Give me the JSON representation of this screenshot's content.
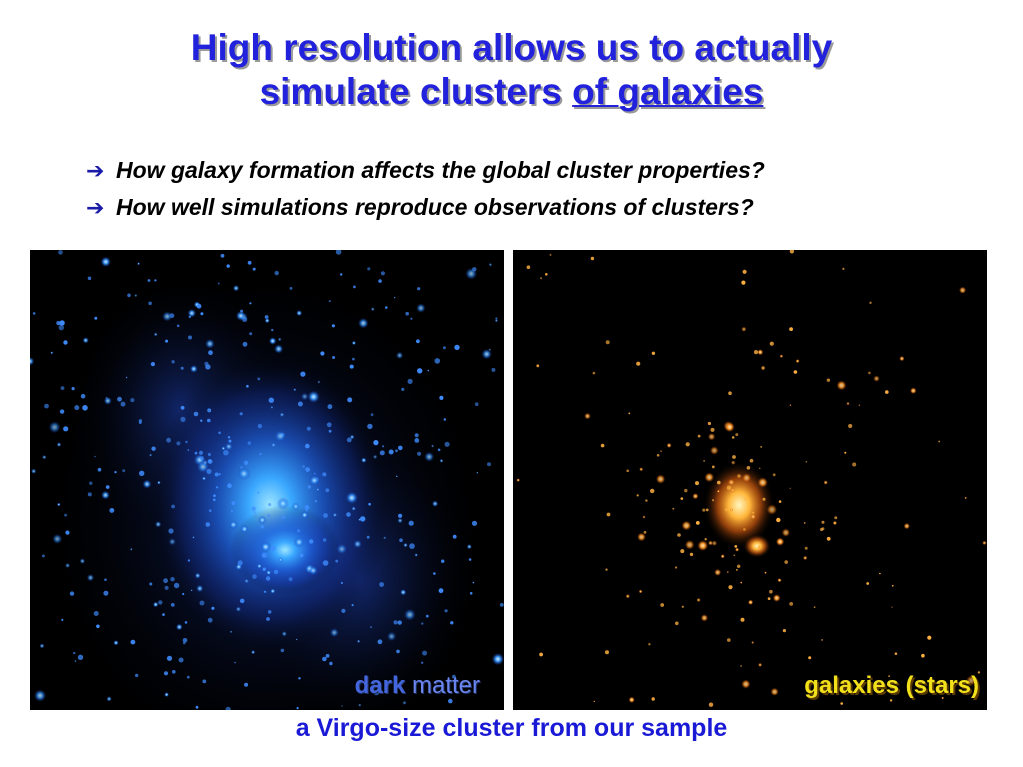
{
  "title": {
    "line1": "High resolution allows us to actually",
    "line2_plain": "simulate clusters ",
    "line2_underlined": "of galaxies"
  },
  "bullets": [
    {
      "icon": "arrow-right-icon",
      "text": "How galaxy formation affects the global cluster properties?"
    },
    {
      "icon": "arrow-right-icon",
      "text": "How well simulations reproduce observations of clusters?"
    }
  ],
  "images": {
    "dark_matter": {
      "label_word1": "dark",
      "label_word2": " matter"
    },
    "galaxies": {
      "label": "galaxies (stars)"
    }
  },
  "caption": "a Virgo-size cluster from our sample",
  "colors": {
    "title": "#2222dd",
    "caption": "#1a1ad6",
    "dark_matter_glow": "#3a8cff",
    "galaxy_glow": "#ff9a2a",
    "galaxy_label": "#f2e11a"
  }
}
